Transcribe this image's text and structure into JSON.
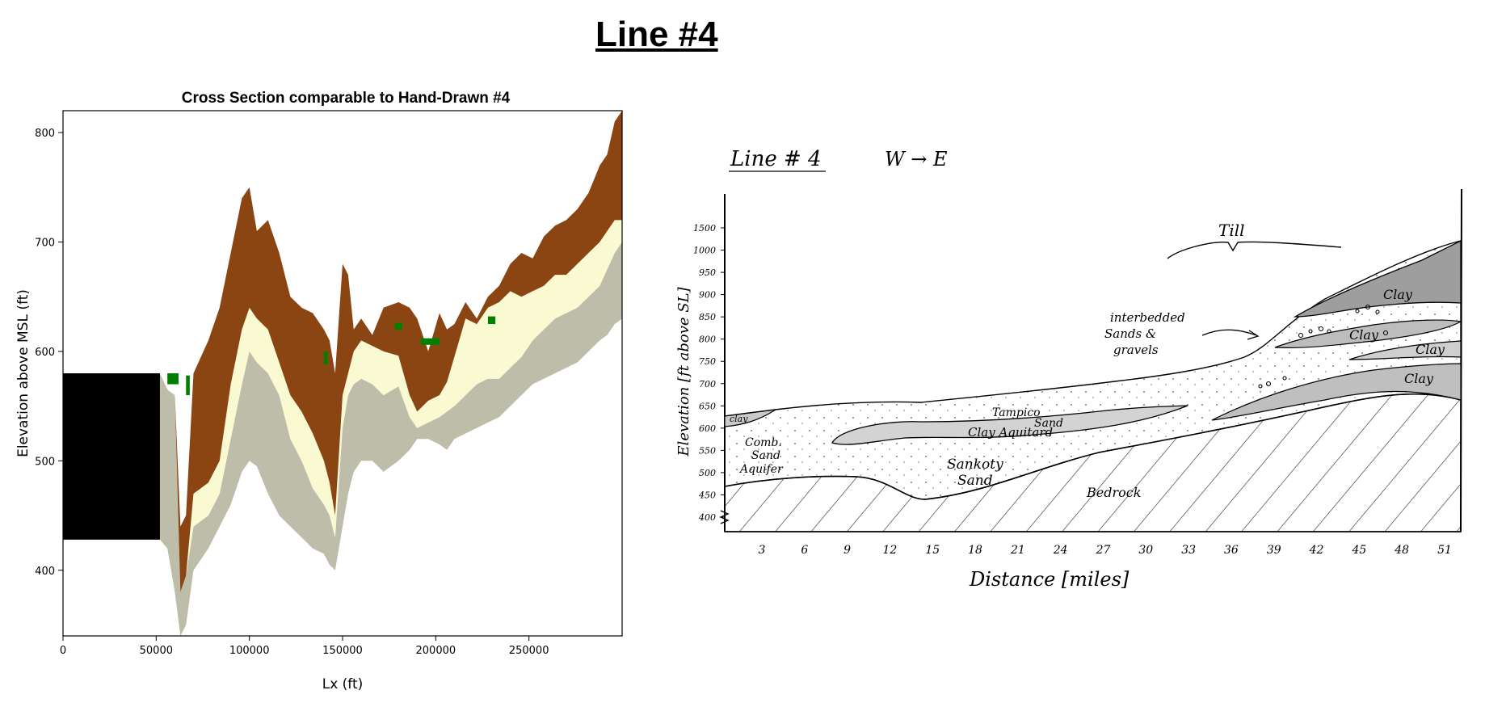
{
  "page_title": "Line #4",
  "chart_data": {
    "type": "heatmap",
    "title": "Cross Section comparable to Hand-Drawn #4",
    "xlabel": "Lx (ft)",
    "ylabel": "Elevation above MSL (ft)",
    "xlim": [
      0,
      300000
    ],
    "ylim": [
      340,
      820
    ],
    "x_ticks": [
      "0",
      "50000",
      "100000",
      "150000",
      "200000",
      "250000"
    ],
    "y_ticks": [
      "400",
      "500",
      "600",
      "700",
      "800"
    ],
    "colors": {
      "top_layer": "#8b4513",
      "sand": "#fafad2",
      "lower_layer": "#bdbda9",
      "green_patch": "#008000",
      "inactive": "#000000"
    },
    "profile_x": [
      0,
      52000,
      56000,
      60000,
      63000,
      66000,
      70000,
      78000,
      84000,
      90000,
      96000,
      100000,
      104000,
      110000,
      116000,
      122000,
      128000,
      134000,
      140000,
      143000,
      146000,
      150000,
      153000,
      156000,
      160000,
      166000,
      172000,
      180000,
      186000,
      190000,
      196000,
      202000,
      206000,
      210000,
      216000,
      222000,
      228000,
      234000,
      240000,
      246000,
      252000,
      258000,
      264000,
      270000,
      276000,
      282000,
      288000,
      292000,
      296000,
      300000
    ],
    "top_surface": [
      580,
      580,
      565,
      560,
      440,
      450,
      580,
      610,
      640,
      690,
      740,
      750,
      710,
      720,
      690,
      650,
      640,
      635,
      620,
      610,
      580,
      680,
      670,
      620,
      630,
      615,
      640,
      645,
      640,
      630,
      600,
      635,
      620,
      625,
      645,
      630,
      650,
      660,
      680,
      690,
      685,
      705,
      715,
      720,
      730,
      745,
      770,
      780,
      810,
      820
    ],
    "brown_base": [
      580,
      580,
      565,
      560,
      380,
      395,
      470,
      480,
      500,
      570,
      620,
      640,
      630,
      620,
      590,
      560,
      545,
      525,
      500,
      480,
      450,
      560,
      580,
      600,
      610,
      605,
      600,
      596,
      560,
      545,
      555,
      560,
      572,
      595,
      630,
      625,
      640,
      645,
      655,
      650,
      655,
      660,
      670,
      670,
      680,
      690,
      700,
      710,
      720,
      720
    ],
    "grey_top": [
      580,
      580,
      565,
      560,
      380,
      395,
      440,
      450,
      470,
      520,
      570,
      600,
      590,
      580,
      560,
      520,
      500,
      475,
      460,
      450,
      430,
      530,
      560,
      570,
      575,
      570,
      560,
      568,
      540,
      530,
      535,
      540,
      545,
      550,
      560,
      570,
      575,
      575,
      585,
      595,
      610,
      620,
      630,
      635,
      640,
      650,
      660,
      675,
      690,
      700
    ],
    "bottom_surface": [
      428,
      428,
      420,
      380,
      340,
      350,
      400,
      420,
      440,
      460,
      490,
      500,
      495,
      470,
      450,
      440,
      430,
      420,
      415,
      405,
      400,
      440,
      470,
      490,
      500,
      500,
      490,
      500,
      510,
      520,
      520,
      515,
      510,
      520,
      525,
      530,
      535,
      540,
      550,
      560,
      570,
      575,
      580,
      585,
      590,
      600,
      610,
      615,
      625,
      630
    ],
    "inactive_block": {
      "x": [
        0,
        52000
      ],
      "y": [
        428,
        580
      ]
    },
    "green_patches": [
      {
        "x": [
          56000,
          62000
        ],
        "y": [
          570,
          580
        ]
      },
      {
        "x": [
          66000,
          68000
        ],
        "y": [
          560,
          578
        ]
      },
      {
        "x": [
          140000,
          142000
        ],
        "y": [
          588,
          600
        ]
      },
      {
        "x": [
          178000,
          182000
        ],
        "y": [
          620,
          626
        ]
      },
      {
        "x": [
          192000,
          202000
        ],
        "y": [
          606,
          612
        ]
      },
      {
        "x": [
          228000,
          232000
        ],
        "y": [
          625,
          632
        ]
      }
    ]
  },
  "sketch": {
    "title": "Line # 4",
    "direction": "W → E",
    "ylabel": "Elevation [ft above SL]",
    "xlabel": "Distance [miles]",
    "y_ticks": [
      "1500",
      "1000",
      "950",
      "900",
      "850",
      "800",
      "750",
      "700",
      "650",
      "600",
      "550",
      "500",
      "450",
      "400"
    ],
    "x_ticks": [
      "3",
      "6",
      "9",
      "12",
      "15",
      "18",
      "21",
      "24",
      "27",
      "30",
      "33",
      "36",
      "39",
      "42",
      "45",
      "48",
      "51"
    ],
    "labels": {
      "till": "Till",
      "interbedded": [
        "interbedded",
        "Sands &",
        "gravels"
      ],
      "clay_1": "Clay",
      "clay_2": "Clay",
      "clay_3": "Clay",
      "clay_4": "Clay",
      "tampico": [
        "Tampico",
        "Sand"
      ],
      "clay_aquitard": "Clay Aquitard",
      "clay_left": "clay",
      "comb": [
        "Comb.",
        "Sand",
        "Aquifer"
      ],
      "sankoty": [
        "Sankoty",
        "Sand"
      ],
      "bedrock": "Bedrock"
    }
  }
}
